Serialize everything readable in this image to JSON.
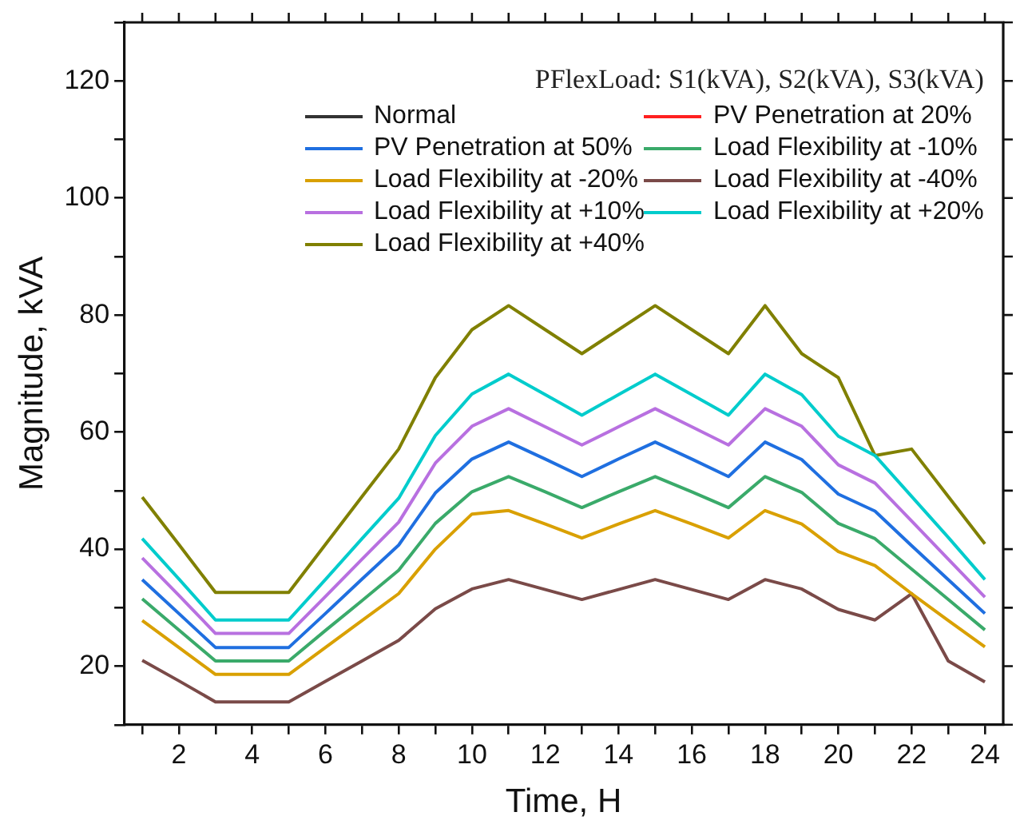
{
  "chart_data": {
    "type": "line",
    "xlabel": "Time, H",
    "ylabel": "Magnitude, kVA",
    "legend_title": "PFlexLoad: S1(kVA), S2(kVA), S3(kVA)",
    "x": [
      1,
      2,
      3,
      4,
      5,
      6,
      7,
      8,
      9,
      10,
      11,
      12,
      13,
      14,
      15,
      16,
      17,
      18,
      19,
      20,
      21,
      22,
      23,
      24
    ],
    "xlim": [
      0.5,
      24.5
    ],
    "xticks": [
      {
        "value": 1,
        "label": null
      },
      2,
      {
        "value": 3,
        "label": null
      },
      4,
      {
        "value": 5,
        "label": null
      },
      6,
      {
        "value": 7,
        "label": null
      },
      8,
      {
        "value": 9,
        "label": null
      },
      10,
      {
        "value": 11,
        "label": null
      },
      12,
      {
        "value": 13,
        "label": null
      },
      14,
      {
        "value": 15,
        "label": null
      },
      16,
      {
        "value": 17,
        "label": null
      },
      18,
      {
        "value": 19,
        "label": null
      },
      20,
      {
        "value": 21,
        "label": null
      },
      22,
      {
        "value": 23,
        "label": null
      },
      24
    ],
    "ylim": [
      10,
      130
    ],
    "yticks": [
      {
        "value": 10,
        "label": null
      },
      20,
      {
        "value": 30,
        "label": null
      },
      40,
      {
        "value": 50,
        "label": null
      },
      60,
      {
        "value": 70,
        "label": null
      },
      80,
      {
        "value": 90,
        "label": null
      },
      100,
      {
        "value": 110,
        "label": null
      },
      120,
      {
        "value": 130,
        "label": null
      }
    ],
    "grid": false,
    "legend": "top right",
    "marker": "none",
    "line_style": "solid",
    "series": [
      {
        "name": "Normal",
        "color": "#333333",
        "values": [
          null,
          null,
          null,
          null,
          null,
          null,
          null,
          null,
          null,
          null,
          null,
          null,
          null,
          null,
          null,
          null,
          null,
          null,
          null,
          null,
          null,
          null,
          null,
          null
        ]
      },
      {
        "name": "PV Penetration at 20%",
        "color": "#ff2020",
        "values": [
          null,
          null,
          null,
          null,
          null,
          null,
          null,
          null,
          null,
          null,
          null,
          null,
          null,
          null,
          null,
          null,
          null,
          null,
          null,
          null,
          null,
          null,
          null,
          null
        ]
      },
      {
        "name": "PV Penetration at 50%",
        "color": "#1f6fe0",
        "values": [
          34.8,
          29.0,
          23.2,
          23.2,
          23.2,
          29.0,
          34.9,
          40.7,
          49.6,
          55.4,
          58.3,
          55.4,
          52.4,
          55.4,
          58.3,
          55.4,
          52.4,
          58.3,
          55.3,
          49.4,
          46.5,
          40.6,
          34.8,
          29.0
        ]
      },
      {
        "name": "Load Flexibility at -10%",
        "color": "#3aaa6a",
        "values": [
          31.5,
          26.2,
          20.9,
          20.9,
          20.9,
          26.1,
          31.2,
          36.4,
          44.4,
          49.8,
          52.4,
          49.8,
          47.1,
          49.8,
          52.4,
          49.8,
          47.1,
          52.4,
          49.7,
          44.4,
          41.8,
          36.6,
          31.4,
          26.2
        ]
      },
      {
        "name": "Load Flexibility at -20%",
        "color": "#d9a000",
        "values": [
          27.8,
          23.2,
          18.6,
          18.6,
          18.6,
          23.2,
          27.8,
          32.4,
          40.0,
          46.0,
          46.6,
          44.3,
          41.9,
          44.3,
          46.6,
          44.3,
          41.9,
          46.6,
          44.3,
          39.6,
          37.2,
          32.4,
          27.8,
          23.3
        ]
      },
      {
        "name": "Load Flexibility at -40%",
        "color": "#7a4a48",
        "values": [
          21.0,
          17.5,
          13.9,
          13.9,
          13.9,
          17.4,
          20.9,
          24.4,
          29.8,
          33.2,
          34.8,
          33.1,
          31.4,
          33.1,
          34.8,
          33.1,
          31.4,
          34.8,
          33.2,
          29.7,
          27.9,
          32.4,
          20.9,
          17.3
        ]
      },
      {
        "name": "Load Flexibility at +10%",
        "color": "#b870e0",
        "values": [
          38.5,
          32.1,
          25.6,
          25.6,
          25.6,
          31.9,
          38.3,
          44.6,
          54.7,
          61.0,
          64.0,
          60.9,
          57.8,
          60.9,
          64.0,
          60.9,
          57.8,
          64.0,
          61.0,
          54.4,
          51.3,
          44.8,
          38.3,
          31.8
        ]
      },
      {
        "name": "Load Flexibility at +20%",
        "color": "#00cccc",
        "values": [
          41.8,
          34.9,
          27.9,
          27.9,
          27.9,
          34.8,
          41.8,
          48.7,
          59.4,
          66.5,
          69.9,
          66.4,
          62.9,
          66.4,
          69.9,
          66.4,
          62.9,
          69.9,
          66.4,
          59.3,
          56.0,
          49.0,
          42.0,
          34.8
        ]
      },
      {
        "name": "Load Flexibility at +40%",
        "color": "#808000",
        "values": [
          48.9,
          40.8,
          32.6,
          32.6,
          32.6,
          40.8,
          49.0,
          57.1,
          69.3,
          77.5,
          81.6,
          77.5,
          73.4,
          77.5,
          81.6,
          77.5,
          73.4,
          81.6,
          73.4,
          69.3,
          56.0,
          57.1,
          49.0,
          40.9
        ]
      }
    ]
  }
}
